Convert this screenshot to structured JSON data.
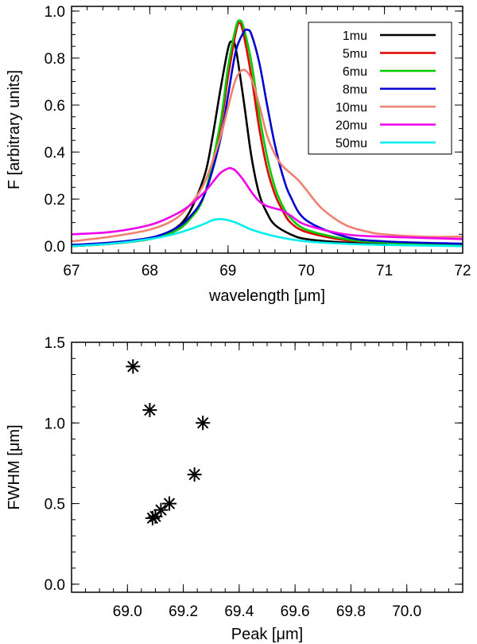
{
  "chart_data": [
    {
      "type": "line",
      "xlabel": "wavelength [μm]",
      "ylabel": "F [arbitrary units]",
      "xlim": [
        67,
        72
      ],
      "ylim": [
        -0.03,
        1.02
      ],
      "xticks": [
        67,
        68,
        69,
        70,
        71,
        72
      ],
      "xtick_labels": [
        "67",
        "68",
        "69",
        "70",
        "71",
        "72"
      ],
      "yticks": [
        0.0,
        0.2,
        0.4,
        0.6,
        0.8,
        1.0
      ],
      "ytick_labels": [
        "0.0",
        "0.2",
        "0.4",
        "0.6",
        "0.8",
        "1.0"
      ],
      "legend_position": "top-right",
      "series": [
        {
          "name": "1mu",
          "color": "#000000",
          "x": [
            67.0,
            67.5,
            68.0,
            68.3,
            68.5,
            68.7,
            68.8,
            68.9,
            69.0,
            69.05,
            69.1,
            69.2,
            69.3,
            69.4,
            69.5,
            69.6,
            69.8,
            70.0,
            70.5,
            71.0,
            72.0
          ],
          "y": [
            0.0,
            0.01,
            0.03,
            0.07,
            0.14,
            0.3,
            0.46,
            0.66,
            0.84,
            0.87,
            0.84,
            0.62,
            0.38,
            0.22,
            0.14,
            0.09,
            0.05,
            0.03,
            0.015,
            0.01,
            0.005
          ]
        },
        {
          "name": "5mu",
          "color": "#e00000",
          "x": [
            67.0,
            67.5,
            68.0,
            68.3,
            68.5,
            68.7,
            68.9,
            69.0,
            69.1,
            69.15,
            69.2,
            69.3,
            69.4,
            69.5,
            69.6,
            69.7,
            69.8,
            70.0,
            70.5,
            71.0,
            72.0
          ],
          "y": [
            0.0,
            0.01,
            0.03,
            0.06,
            0.11,
            0.22,
            0.5,
            0.72,
            0.91,
            0.95,
            0.9,
            0.72,
            0.5,
            0.33,
            0.22,
            0.15,
            0.1,
            0.06,
            0.025,
            0.015,
            0.005
          ]
        },
        {
          "name": "6mu",
          "color": "#00cc00",
          "x": [
            67.0,
            67.5,
            68.0,
            68.3,
            68.5,
            68.7,
            68.9,
            69.0,
            69.1,
            69.15,
            69.2,
            69.3,
            69.4,
            69.5,
            69.6,
            69.7,
            69.8,
            70.0,
            70.5,
            71.0,
            72.0
          ],
          "y": [
            0.0,
            0.01,
            0.03,
            0.06,
            0.11,
            0.22,
            0.52,
            0.76,
            0.93,
            0.96,
            0.93,
            0.78,
            0.56,
            0.38,
            0.25,
            0.17,
            0.12,
            0.07,
            0.03,
            0.015,
            0.005
          ]
        },
        {
          "name": "8mu",
          "color": "#0000d0",
          "x": [
            67.0,
            67.5,
            68.0,
            68.3,
            68.5,
            68.7,
            68.9,
            69.0,
            69.1,
            69.2,
            69.25,
            69.3,
            69.4,
            69.5,
            69.6,
            69.7,
            69.8,
            70.0,
            70.5,
            71.0,
            72.0
          ],
          "y": [
            0.005,
            0.015,
            0.035,
            0.07,
            0.12,
            0.22,
            0.45,
            0.64,
            0.83,
            0.91,
            0.92,
            0.9,
            0.78,
            0.6,
            0.43,
            0.3,
            0.21,
            0.11,
            0.04,
            0.02,
            0.01
          ]
        },
        {
          "name": "10mu",
          "color": "#f08070",
          "x": [
            67.0,
            67.5,
            68.0,
            68.3,
            68.5,
            68.7,
            68.9,
            69.0,
            69.1,
            69.2,
            69.3,
            69.4,
            69.5,
            69.6,
            69.7,
            69.8,
            69.9,
            70.0,
            70.2,
            70.5,
            70.8,
            71.0,
            71.5,
            72.0
          ],
          "y": [
            0.02,
            0.04,
            0.07,
            0.11,
            0.17,
            0.27,
            0.46,
            0.59,
            0.71,
            0.75,
            0.71,
            0.6,
            0.47,
            0.39,
            0.34,
            0.31,
            0.28,
            0.24,
            0.16,
            0.09,
            0.06,
            0.05,
            0.04,
            0.04
          ]
        },
        {
          "name": "20mu",
          "color": "#ee00ee",
          "x": [
            67.0,
            67.5,
            68.0,
            68.3,
            68.5,
            68.7,
            68.8,
            68.9,
            69.0,
            69.05,
            69.1,
            69.2,
            69.3,
            69.4,
            69.5,
            69.6,
            69.7,
            69.8,
            70.0,
            70.5,
            71.0,
            72.0
          ],
          "y": [
            0.05,
            0.06,
            0.09,
            0.13,
            0.17,
            0.23,
            0.27,
            0.31,
            0.33,
            0.33,
            0.32,
            0.28,
            0.23,
            0.19,
            0.17,
            0.16,
            0.15,
            0.13,
            0.09,
            0.05,
            0.04,
            0.03
          ]
        },
        {
          "name": "50mu",
          "color": "#00eeee",
          "x": [
            67.0,
            67.5,
            68.0,
            68.3,
            68.5,
            68.7,
            68.8,
            68.9,
            69.0,
            69.1,
            69.2,
            69.3,
            69.5,
            69.7,
            70.0,
            70.5,
            71.0,
            72.0
          ],
          "y": [
            0.0,
            0.01,
            0.03,
            0.05,
            0.07,
            0.095,
            0.11,
            0.115,
            0.11,
            0.1,
            0.085,
            0.07,
            0.05,
            0.035,
            0.02,
            0.01,
            0.005,
            0.0
          ]
        }
      ]
    },
    {
      "type": "scatter",
      "xlabel": "Peak [μm]",
      "ylabel": "FWHM [μm]",
      "xlim": [
        68.8,
        70.2
      ],
      "ylim": [
        -0.05,
        1.5
      ],
      "xticks": [
        69.0,
        69.2,
        69.4,
        69.6,
        69.8,
        70.0
      ],
      "xtick_labels": [
        "69.0",
        "69.2",
        "69.4",
        "69.6",
        "69.8",
        "70.0"
      ],
      "yticks": [
        0.0,
        0.5,
        1.0,
        1.5
      ],
      "ytick_labels": [
        "0.0",
        "0.5",
        "1.0",
        "1.5"
      ],
      "marker": "asterisk",
      "points": [
        {
          "x": 69.02,
          "y": 1.35
        },
        {
          "x": 69.08,
          "y": 1.08
        },
        {
          "x": 69.27,
          "y": 1.0
        },
        {
          "x": 69.24,
          "y": 0.68
        },
        {
          "x": 69.15,
          "y": 0.5
        },
        {
          "x": 69.12,
          "y": 0.46
        },
        {
          "x": 69.09,
          "y": 0.41
        },
        {
          "x": 69.1,
          "y": 0.42
        }
      ]
    }
  ]
}
